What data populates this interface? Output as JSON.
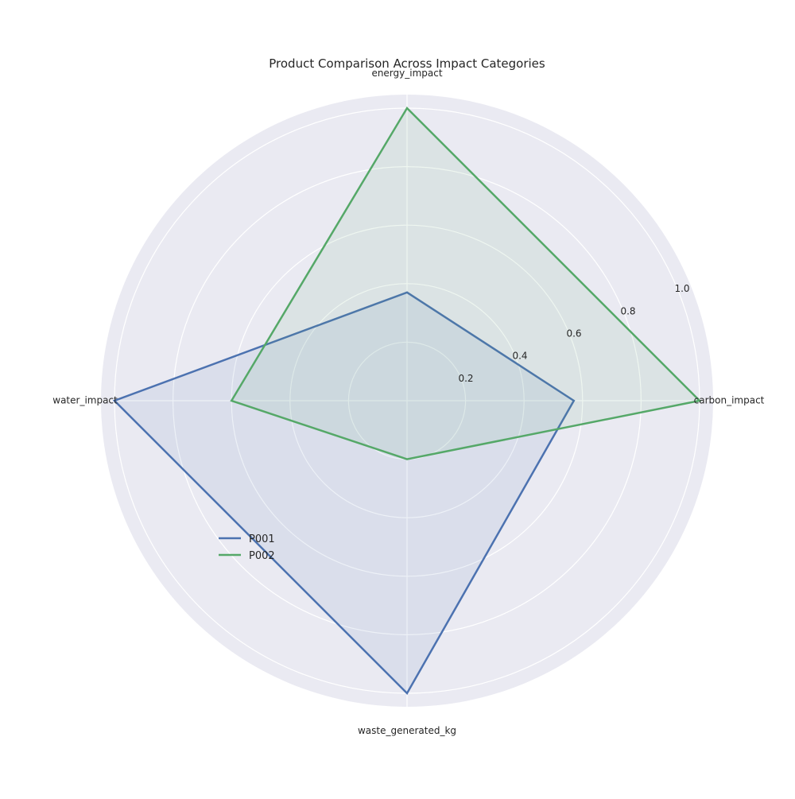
{
  "chart_data": {
    "type": "radar",
    "title": "Product Comparison Across Impact Categories",
    "axes": [
      "carbon_impact",
      "energy_impact",
      "water_impact",
      "waste_generated_kg"
    ],
    "radial_range": [
      0,
      1.0
    ],
    "radial_ticks": [
      0.2,
      0.4,
      0.6,
      0.8,
      1.0
    ],
    "radial_tick_labels": [
      "0.2",
      "0.4",
      "0.6",
      "0.8",
      "1.0"
    ],
    "grid": true,
    "legend_position": "lower-left",
    "series": [
      {
        "name": "P001",
        "color": "#4c72b0",
        "values": [
          0.57,
          0.37,
          1.0,
          1.0
        ]
      },
      {
        "name": "P002",
        "color": "#55a868",
        "values": [
          1.0,
          1.0,
          0.6,
          0.2
        ]
      }
    ],
    "background_color": "#eaeaf2"
  }
}
